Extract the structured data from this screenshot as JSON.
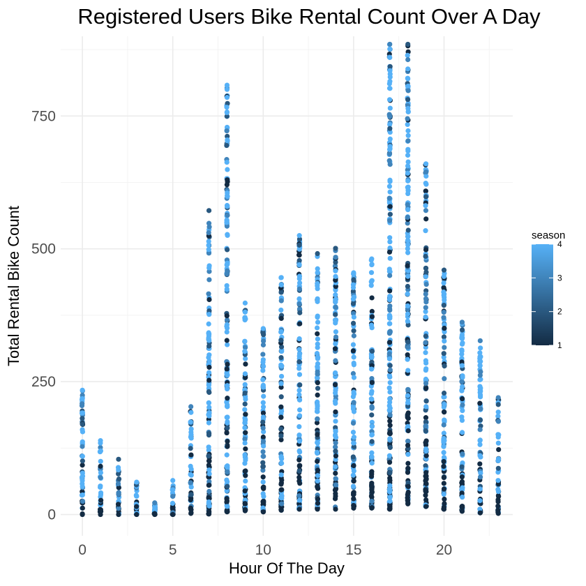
{
  "chart_data": {
    "type": "scatter",
    "title": "Registered Users Bike Rental Count Over A Day",
    "xlabel": "Hour Of The Day",
    "ylabel": "Total Rental Bike Count",
    "xlim": [
      -1.2,
      23.8
    ],
    "ylim": [
      -40,
      900
    ],
    "x_ticks": [
      0,
      5,
      10,
      15,
      20
    ],
    "x_tick_labels": [
      "0",
      "5",
      "10",
      "15",
      "20"
    ],
    "y_ticks": [
      0,
      250,
      500,
      750
    ],
    "y_tick_labels": [
      "0",
      "250",
      "500",
      "750"
    ],
    "grid": true,
    "legend": {
      "title": "season",
      "position": "right",
      "min": 1,
      "max": 4,
      "breaks": [
        "1",
        "2",
        "3",
        "4"
      ],
      "color_low": "#132b43",
      "color_high": "#56b1f7"
    },
    "hours": [
      {
        "hour": 0,
        "max": 234,
        "min": 0,
        "outliers": [
          [
            234,
            4
          ],
          [
            218,
            4
          ],
          [
            170,
            2
          ]
        ]
      },
      {
        "hour": 1,
        "max": 139,
        "min": 0,
        "outliers": [
          [
            139,
            4
          ]
        ]
      },
      {
        "hour": 2,
        "max": 104,
        "min": 0,
        "outliers": [
          [
            104,
            2
          ]
        ]
      },
      {
        "hour": 3,
        "max": 61,
        "min": 0,
        "outliers": [
          [
            61,
            4
          ]
        ]
      },
      {
        "hour": 4,
        "max": 22,
        "min": 0,
        "outliers": [
          [
            22,
            3
          ]
        ]
      },
      {
        "hour": 5,
        "max": 64,
        "min": 0,
        "outliers": [
          [
            64,
            4
          ]
        ]
      },
      {
        "hour": 6,
        "max": 203,
        "min": 2,
        "outliers": [
          [
            203,
            3
          ]
        ]
      },
      {
        "hour": 7,
        "max": 572,
        "min": 1,
        "outliers": [
          [
            572,
            2
          ],
          [
            548,
            3
          ]
        ]
      },
      {
        "hour": 8,
        "max": 808,
        "min": 5,
        "outliers": [
          [
            808,
            4
          ],
          [
            800,
            4
          ],
          [
            785,
            4
          ]
        ]
      },
      {
        "hour": 9,
        "max": 398,
        "min": 7,
        "outliers": [
          [
            398,
            4
          ],
          [
            381,
            4
          ]
        ]
      },
      {
        "hour": 10,
        "max": 350,
        "min": 5,
        "outliers": [
          [
            350,
            4
          ]
        ]
      },
      {
        "hour": 11,
        "max": 446,
        "min": 8,
        "outliers": [
          [
            446,
            4
          ],
          [
            432,
            4
          ]
        ]
      },
      {
        "hour": 12,
        "max": 525,
        "min": 10,
        "outliers": [
          [
            525,
            4
          ],
          [
            507,
            2
          ],
          [
            470,
            4
          ]
        ]
      },
      {
        "hour": 13,
        "max": 491,
        "min": 10,
        "outliers": [
          [
            491,
            2
          ],
          [
            455,
            4
          ]
        ]
      },
      {
        "hour": 14,
        "max": 501,
        "min": 10,
        "outliers": [
          [
            501,
            2
          ],
          [
            448,
            4
          ]
        ]
      },
      {
        "hour": 15,
        "max": 455,
        "min": 12,
        "outliers": [
          [
            455,
            4
          ],
          [
            442,
            2
          ]
        ]
      },
      {
        "hour": 16,
        "max": 481,
        "min": 12,
        "outliers": [
          [
            481,
            4
          ],
          [
            470,
            4
          ]
        ]
      },
      {
        "hour": 17,
        "max": 885,
        "min": 10,
        "outliers": [
          [
            885,
            3
          ],
          [
            876,
            4
          ],
          [
            860,
            4
          ]
        ]
      },
      {
        "hour": 18,
        "max": 885,
        "min": 20,
        "outliers": [
          [
            885,
            2
          ],
          [
            856,
            3
          ],
          [
            820,
            4
          ]
        ]
      },
      {
        "hour": 19,
        "max": 660,
        "min": 15,
        "outliers": [
          [
            660,
            4
          ],
          [
            598,
            2
          ]
        ]
      },
      {
        "hour": 20,
        "max": 460,
        "min": 10,
        "outliers": [
          [
            460,
            2
          ],
          [
            448,
            4
          ]
        ]
      },
      {
        "hour": 21,
        "max": 362,
        "min": 6,
        "outliers": [
          [
            362,
            3
          ],
          [
            331,
            4
          ]
        ]
      },
      {
        "hour": 22,
        "max": 327,
        "min": 3,
        "outliers": [
          [
            327,
            3
          ],
          [
            262,
            3
          ]
        ]
      },
      {
        "hour": 23,
        "max": 220,
        "min": 2,
        "outliers": [
          [
            220,
            3
          ],
          [
            207,
            2
          ]
        ]
      }
    ]
  }
}
